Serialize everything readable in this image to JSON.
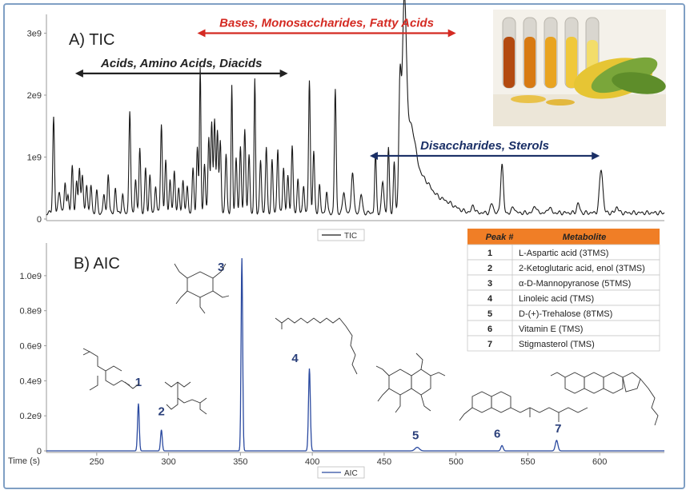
{
  "chart_data": [
    {
      "type": "line",
      "title": "A) TIC",
      "xlim": [
        215,
        645
      ],
      "ylim": [
        0,
        3200000000.0
      ],
      "yticks": [
        {
          "value": 0,
          "label": "0"
        },
        {
          "value": 1000000000.0,
          "label": "1e9"
        },
        {
          "value": 2000000000.0,
          "label": "2e9"
        },
        {
          "value": 3000000000.0,
          "label": "3e9"
        }
      ],
      "legend": {
        "label": "TIC",
        "placement": "bottom-center"
      },
      "baseline": 100000000.0,
      "peaks": [
        {
          "x": 220,
          "y": 1550000000.0,
          "w": 0.6
        },
        {
          "x": 224,
          "y": 350000000.0,
          "w": 0.8
        },
        {
          "x": 228,
          "y": 500000000.0,
          "w": 0.6
        },
        {
          "x": 230,
          "y": 300000000.0,
          "w": 0.6
        },
        {
          "x": 233,
          "y": 780000000.0,
          "w": 0.6
        },
        {
          "x": 236,
          "y": 500000000.0,
          "w": 0.6
        },
        {
          "x": 238,
          "y": 720000000.0,
          "w": 0.6
        },
        {
          "x": 240,
          "y": 620000000.0,
          "w": 0.6
        },
        {
          "x": 243,
          "y": 480000000.0,
          "w": 0.6
        },
        {
          "x": 246,
          "y": 450000000.0,
          "w": 0.6
        },
        {
          "x": 250,
          "y": 350000000.0,
          "w": 0.6
        },
        {
          "x": 255,
          "y": 300000000.0,
          "w": 0.6
        },
        {
          "x": 258,
          "y": 650000000.0,
          "w": 0.6
        },
        {
          "x": 263,
          "y": 400000000.0,
          "w": 0.6
        },
        {
          "x": 268,
          "y": 300000000.0,
          "w": 0.6
        },
        {
          "x": 273,
          "y": 1650000000.0,
          "w": 0.6
        },
        {
          "x": 277,
          "y": 550000000.0,
          "w": 0.6
        },
        {
          "x": 280,
          "y": 1050000000.0,
          "w": 0.6
        },
        {
          "x": 284,
          "y": 700000000.0,
          "w": 0.6
        },
        {
          "x": 287,
          "y": 600000000.0,
          "w": 0.6
        },
        {
          "x": 291,
          "y": 450000000.0,
          "w": 0.6
        },
        {
          "x": 295,
          "y": 1450000000.0,
          "w": 0.6
        },
        {
          "x": 298,
          "y": 850000000.0,
          "w": 0.6
        },
        {
          "x": 301,
          "y": 550000000.0,
          "w": 0.6
        },
        {
          "x": 304,
          "y": 700000000.0,
          "w": 0.6
        },
        {
          "x": 307,
          "y": 400000000.0,
          "w": 0.6
        },
        {
          "x": 310,
          "y": 550000000.0,
          "w": 0.6
        },
        {
          "x": 313,
          "y": 450000000.0,
          "w": 0.6
        },
        {
          "x": 317,
          "y": 700000000.0,
          "w": 0.6
        },
        {
          "x": 320,
          "y": 1050000000.0,
          "w": 0.6
        },
        {
          "x": 322,
          "y": 2350000000.0,
          "w": 0.5
        },
        {
          "x": 325,
          "y": 800000000.0,
          "w": 0.6
        },
        {
          "x": 328,
          "y": 1250000000.0,
          "w": 0.6
        },
        {
          "x": 330,
          "y": 1450000000.0,
          "w": 0.6
        },
        {
          "x": 332,
          "y": 1500000000.0,
          "w": 0.6
        },
        {
          "x": 334,
          "y": 1350000000.0,
          "w": 0.6
        },
        {
          "x": 336,
          "y": 1150000000.0,
          "w": 0.6
        },
        {
          "x": 340,
          "y": 950000000.0,
          "w": 0.6
        },
        {
          "x": 344,
          "y": 2050000000.0,
          "w": 0.5
        },
        {
          "x": 347,
          "y": 900000000.0,
          "w": 0.6
        },
        {
          "x": 350,
          "y": 1050000000.0,
          "w": 0.6
        },
        {
          "x": 353,
          "y": 1350000000.0,
          "w": 0.6
        },
        {
          "x": 356,
          "y": 950000000.0,
          "w": 0.6
        },
        {
          "x": 360,
          "y": 2150000000.0,
          "w": 0.5
        },
        {
          "x": 364,
          "y": 850000000.0,
          "w": 0.6
        },
        {
          "x": 368,
          "y": 1050000000.0,
          "w": 0.6
        },
        {
          "x": 372,
          "y": 850000000.0,
          "w": 0.6
        },
        {
          "x": 376,
          "y": 1050000000.0,
          "w": 0.6
        },
        {
          "x": 380,
          "y": 750000000.0,
          "w": 0.6
        },
        {
          "x": 383,
          "y": 600000000.0,
          "w": 0.6
        },
        {
          "x": 386,
          "y": 1100000000.0,
          "w": 0.6
        },
        {
          "x": 390,
          "y": 550000000.0,
          "w": 0.6
        },
        {
          "x": 394,
          "y": 450000000.0,
          "w": 0.6
        },
        {
          "x": 398,
          "y": 2150000000.0,
          "w": 0.6
        },
        {
          "x": 401,
          "y": 1000000000.0,
          "w": 0.6
        },
        {
          "x": 405,
          "y": 450000000.0,
          "w": 0.6
        },
        {
          "x": 410,
          "y": 350000000.0,
          "w": 0.6
        },
        {
          "x": 416,
          "y": 2000000000.0,
          "w": 0.6
        },
        {
          "x": 422,
          "y": 350000000.0,
          "w": 0.8
        },
        {
          "x": 428,
          "y": 680000000.0,
          "w": 0.8
        },
        {
          "x": 434,
          "y": 300000000.0,
          "w": 0.8
        },
        {
          "x": 444,
          "y": 950000000.0,
          "w": 0.6
        },
        {
          "x": 449,
          "y": 500000000.0,
          "w": 0.8
        },
        {
          "x": 453,
          "y": 1050000000.0,
          "w": 0.6
        },
        {
          "x": 457,
          "y": 800000000.0,
          "w": 0.6
        },
        {
          "x": 461,
          "y": 1900000000.0,
          "w": 0.8
        },
        {
          "x": 464,
          "y": 2850000000.0,
          "w": 1.4
        },
        {
          "x": 468,
          "y": 1200000000.0,
          "w": 3.5
        },
        {
          "x": 476,
          "y": 500000000.0,
          "w": 6.0
        },
        {
          "x": 490,
          "y": 200000000.0,
          "w": 8.0
        },
        {
          "x": 512,
          "y": 120000000.0,
          "w": 1.0
        },
        {
          "x": 525,
          "y": 150000000.0,
          "w": 1.0
        },
        {
          "x": 532,
          "y": 800000000.0,
          "w": 0.9
        },
        {
          "x": 540,
          "y": 100000000.0,
          "w": 1.0
        },
        {
          "x": 555,
          "y": 120000000.0,
          "w": 1.0
        },
        {
          "x": 565,
          "y": 100000000.0,
          "w": 1.0
        },
        {
          "x": 585,
          "y": 150000000.0,
          "w": 1.0
        },
        {
          "x": 601,
          "y": 700000000.0,
          "w": 1.2
        },
        {
          "x": 612,
          "y": 100000000.0,
          "w": 1.0
        }
      ],
      "annotations": [
        {
          "text": "Bases, Monosaccharides, Fatty Acids",
          "from": 320,
          "to": 500,
          "y": 3000000000.0,
          "color": "#d42a22"
        },
        {
          "text": "Acids, Amino Acids, Diacids",
          "from": 235,
          "to": 383,
          "y": 2350000000.0,
          "color": "#222222"
        },
        {
          "text": "Disaccharides, Sterols",
          "from": 440,
          "to": 600,
          "y": 1020000000.0,
          "color": "#1a2f66"
        }
      ],
      "photo_name": "test-tubes-and-corn-photo"
    },
    {
      "type": "line",
      "title": "B) AIC",
      "xlabel": "Time (s)",
      "xlim": [
        215,
        645
      ],
      "ylim": [
        0,
        1150000000.0
      ],
      "xticks": [
        {
          "value": 250,
          "label": "250"
        },
        {
          "value": 300,
          "label": "300"
        },
        {
          "value": 350,
          "label": "350"
        },
        {
          "value": 400,
          "label": "400"
        },
        {
          "value": 450,
          "label": "450"
        },
        {
          "value": 500,
          "label": "500"
        },
        {
          "value": 550,
          "label": "550"
        },
        {
          "value": 600,
          "label": "600"
        }
      ],
      "yticks": [
        {
          "value": 0,
          "label": "0"
        },
        {
          "value": 200000000.0,
          "label": "0.2e9"
        },
        {
          "value": 400000000.0,
          "label": "0.4e9"
        },
        {
          "value": 600000000.0,
          "label": "0.6e9"
        },
        {
          "value": 800000000.0,
          "label": "0.8e9"
        },
        {
          "value": 1000000000.0,
          "label": "1.0e9"
        }
      ],
      "legend": {
        "label": "AIC",
        "placement": "bottom-center"
      },
      "peaks": [
        {
          "label": "1",
          "x": 279,
          "y": 270000000.0,
          "w": 0.6
        },
        {
          "label": "2",
          "x": 295,
          "y": 120000000.0,
          "w": 0.6
        },
        {
          "label": "3",
          "x": 351,
          "y": 1100000000.0,
          "w": 0.55
        },
        {
          "label": "4",
          "x": 398,
          "y": 470000000.0,
          "w": 0.65
        },
        {
          "label": "5",
          "x": 473,
          "y": 20000000.0,
          "w": 1.5
        },
        {
          "label": "6",
          "x": 532,
          "y": 30000000.0,
          "w": 0.8
        },
        {
          "label": "7",
          "x": 570,
          "y": 60000000.0,
          "w": 0.9
        }
      ],
      "table": {
        "headers": [
          "Peak #",
          "Metabolite"
        ],
        "rows": [
          [
            "1",
            "L-Aspartic acid (3TMS)"
          ],
          [
            "2",
            "2-Ketoglutaric acid, enol (3TMS)"
          ],
          [
            "3",
            "α-D-Mannopyranose (5TMS)"
          ],
          [
            "4",
            "Linoleic acid (TMS)"
          ],
          [
            "5",
            "D-(+)-Trehalose (8TMS)"
          ],
          [
            "6",
            "Vitamin E (TMS)"
          ],
          [
            "7",
            "Stigmasterol (TMS)"
          ]
        ],
        "header_color": "#f07e26"
      }
    }
  ],
  "colors": {
    "tic_line": "#1a1a1a",
    "aic_line": "#2b4aa0",
    "frame": "#7f9fc4"
  }
}
